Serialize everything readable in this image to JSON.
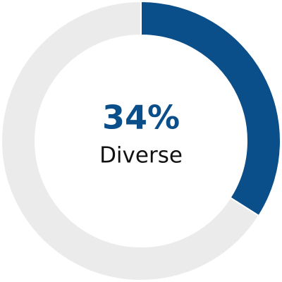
{
  "chart_data": {
    "type": "pie",
    "categories": [
      "Diverse",
      null
    ],
    "values": [
      34,
      66
    ],
    "value_labels": [
      "34%",
      null
    ],
    "colors": [
      "#0b4f8a",
      "#ebebeb"
    ]
  }
}
